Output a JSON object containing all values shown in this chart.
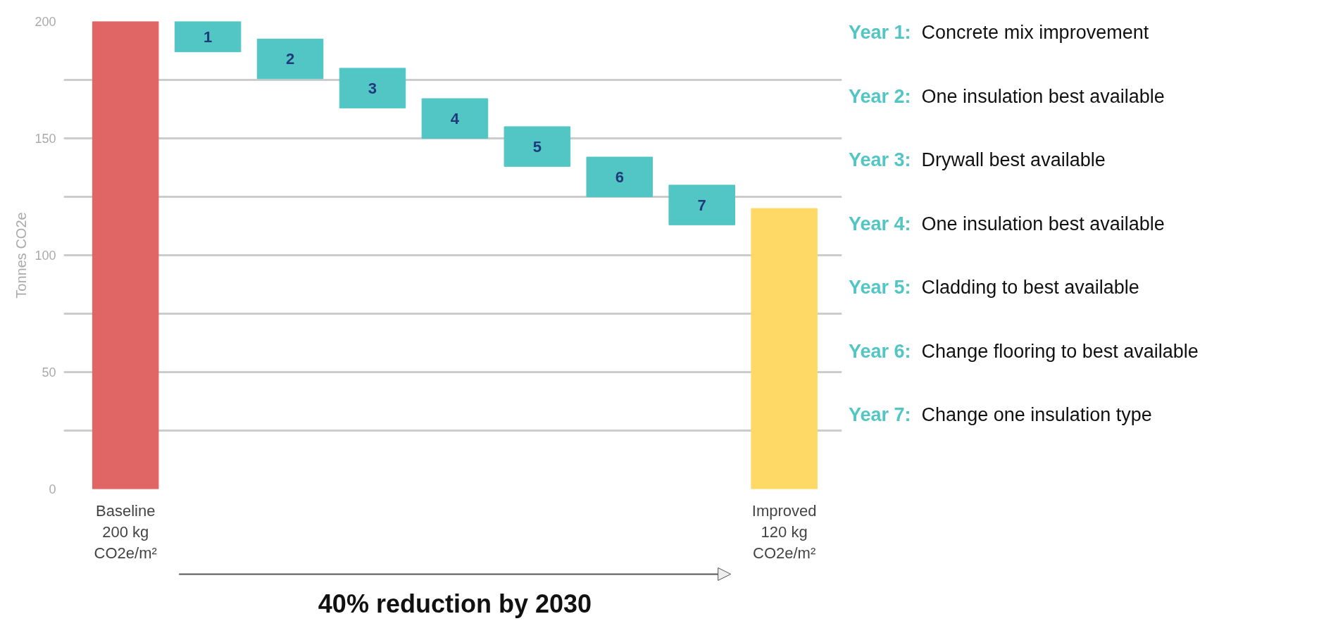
{
  "chart_data": {
    "type": "bar",
    "ylabel": "Tonnes CO2e",
    "categories": [
      "Baseline\n200 kg\nCO2e/m²",
      null,
      null,
      null,
      null,
      null,
      null,
      null,
      "Improved\n120 kg\nCO2e/m²"
    ],
    "values": [
      200,
      13,
      17,
      17,
      17,
      17,
      17,
      17,
      120
    ],
    "base": [
      0,
      187,
      175.5,
      163,
      150,
      138,
      125,
      113,
      0
    ],
    "colors": [
      "#e06666",
      "#52c5c5",
      "#52c5c5",
      "#52c5c5",
      "#52c5c5",
      "#52c5c5",
      "#52c5c5",
      "#52c5c5",
      "#ffd966"
    ],
    "ylim": [
      0,
      200
    ],
    "yticks": [
      0,
      {
        "value": 25,
        "label": null
      },
      50,
      {
        "value": 75,
        "label": null
      },
      100,
      {
        "value": 125,
        "label": null
      },
      150,
      {
        "value": 175,
        "label": null
      },
      200
    ],
    "grid": "y",
    "annotations": [
      "40% reduction by 2030",
      "Year 1:  Concrete mix improvement",
      "Year 2:  One insulation best available",
      "Year 3:  Drywall best available",
      "Year 4:  One insulation best available",
      "Year 5:  Cladding to best available",
      "Year 6:  Change flooring to best available",
      "Year 7:  Change one insulation type",
      "1",
      "2",
      "3",
      "4",
      "5",
      "6",
      "7"
    ]
  }
}
